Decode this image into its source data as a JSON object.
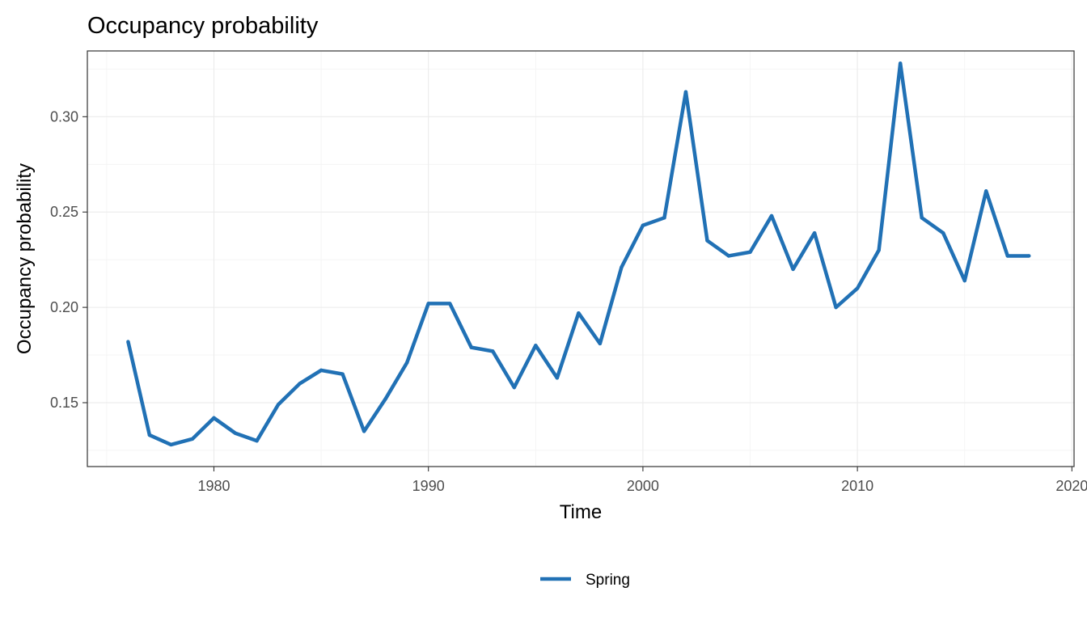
{
  "chart_data": {
    "type": "line",
    "title": "Occupancy probability",
    "xlabel": "Time",
    "ylabel": "Occupancy probability",
    "xlim": [
      1974.1,
      2020.1
    ],
    "ylim": [
      0.1165,
      0.3345
    ],
    "x_ticks": [
      {
        "value": 1980,
        "label": "1980"
      },
      {
        "value": 1990,
        "label": "1990"
      },
      {
        "value": 2000,
        "label": "2000"
      },
      {
        "value": 2010,
        "label": "2010"
      },
      {
        "value": 2020,
        "label": "2020"
      }
    ],
    "y_ticks": [
      {
        "value": 0.15,
        "label": "0.15"
      },
      {
        "value": 0.2,
        "label": "0.20"
      },
      {
        "value": 0.25,
        "label": "0.25"
      },
      {
        "value": 0.3,
        "label": "0.30"
      }
    ],
    "grid": true,
    "legend_position": "bottom",
    "series": [
      {
        "name": "Spring",
        "color": "#2171b5",
        "x": [
          1976,
          1977,
          1978,
          1979,
          1980,
          1981,
          1982,
          1983,
          1984,
          1985,
          1986,
          1987,
          1988,
          1989,
          1990,
          1991,
          1992,
          1993,
          1994,
          1995,
          1996,
          1997,
          1998,
          1999,
          2000,
          2001,
          2002,
          2003,
          2004,
          2005,
          2006,
          2007,
          2008,
          2009,
          2010,
          2011,
          2012,
          2013,
          2014,
          2015,
          2016,
          2017,
          2018
        ],
        "values": [
          0.182,
          0.133,
          0.128,
          0.131,
          0.142,
          0.134,
          0.13,
          0.149,
          0.16,
          0.167,
          0.165,
          0.135,
          0.152,
          0.171,
          0.202,
          0.202,
          0.179,
          0.177,
          0.158,
          0.18,
          0.163,
          0.197,
          0.181,
          0.221,
          0.243,
          0.247,
          0.313,
          0.235,
          0.227,
          0.229,
          0.248,
          0.22,
          0.239,
          0.2,
          0.21,
          0.23,
          0.328,
          0.247,
          0.239,
          0.214,
          0.261,
          0.227,
          0.227
        ]
      }
    ]
  }
}
